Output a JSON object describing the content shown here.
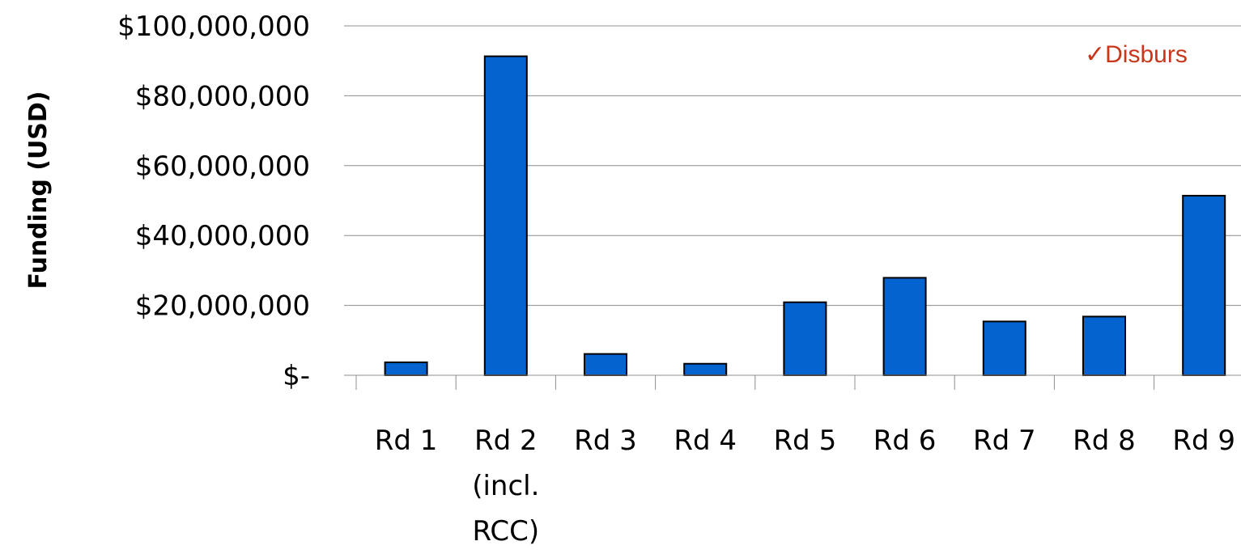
{
  "chart_data": {
    "type": "bar",
    "title": "",
    "xlabel": "",
    "ylabel": "Funding (USD)",
    "categories": [
      [
        "Rd 1"
      ],
      [
        "Rd 2",
        "(incl.",
        "RCC)"
      ],
      [
        "Rd 3"
      ],
      [
        "Rd 4"
      ],
      [
        "Rd 5"
      ],
      [
        "Rd 6"
      ],
      [
        "Rd 7"
      ],
      [
        "Rd 8"
      ],
      [
        "Rd 9"
      ]
    ],
    "values": [
      3700000,
      91300000,
      6100000,
      3300000,
      20900000,
      27900000,
      15400000,
      16800000,
      51400000
    ],
    "ylim": [
      0,
      100000000
    ],
    "yticks": [
      0,
      20000000,
      40000000,
      60000000,
      80000000,
      100000000
    ],
    "ytick_labels": [
      "$-",
      "$20,000,000",
      "$40,000,000",
      "$60,000,000",
      "$80,000,000",
      "$100,000,000"
    ],
    "grid": true,
    "legend": "none",
    "annotation": "✓Disburs",
    "colors": {
      "bar": "#0563d0",
      "bar_stroke": "#000000",
      "grid": "#8c8c8c",
      "annotation": "#c8371a"
    }
  }
}
